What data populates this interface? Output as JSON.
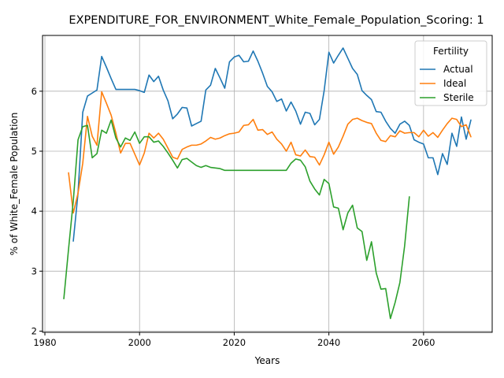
{
  "chart_data": {
    "type": "line",
    "title": "EXPENDITURE_FOR_ENVIRONMENT_White_Female_Population_Scoring: 1",
    "xlabel": "Years",
    "ylabel": "% of White_Female Population",
    "xlim": [
      1979.5,
      2074.5
    ],
    "ylim": [
      1.98,
      6.93
    ],
    "xticks": [
      1980,
      2000,
      2020,
      2040,
      2060
    ],
    "yticks": [
      2,
      3,
      4,
      5,
      6
    ],
    "grid": true,
    "legend": {
      "title": "Fertility",
      "placement": "top-right"
    },
    "series": [
      {
        "name": "Actual",
        "color": "#1f77b4",
        "x": [
          1986,
          1987,
          1988,
          1989,
          1990,
          1991,
          1992,
          1993,
          1994,
          1995,
          1996,
          1997,
          1998,
          1999,
          2000,
          2001,
          2002,
          2003,
          2004,
          2005,
          2006,
          2007,
          2008,
          2009,
          2010,
          2011,
          2012,
          2013,
          2014,
          2015,
          2016,
          2017,
          2018,
          2019,
          2020,
          2021,
          2022,
          2023,
          2024,
          2025,
          2026,
          2027,
          2028,
          2029,
          2030,
          2031,
          2032,
          2033,
          2034,
          2035,
          2036,
          2037,
          2038,
          2039,
          2040,
          2041,
          2042,
          2043,
          2044,
          2045,
          2046,
          2047,
          2048,
          2049,
          2050,
          2051,
          2052,
          2053,
          2054,
          2055,
          2056,
          2057,
          2058,
          2059,
          2060,
          2061,
          2062,
          2063,
          2064,
          2065,
          2066,
          2067,
          2068,
          2069,
          2070
        ],
        "values": [
          3.5,
          4.3,
          5.65,
          5.92,
          5.97,
          6.02,
          6.58,
          6.4,
          6.21,
          6.03,
          6.03,
          6.03,
          6.03,
          6.03,
          6.01,
          5.98,
          6.27,
          6.16,
          6.25,
          6.02,
          5.84,
          5.54,
          5.62,
          5.73,
          5.72,
          5.42,
          5.46,
          5.5,
          6.02,
          6.1,
          6.38,
          6.22,
          6.05,
          6.49,
          6.57,
          6.6,
          6.49,
          6.5,
          6.67,
          6.5,
          6.3,
          6.08,
          5.99,
          5.83,
          5.87,
          5.67,
          5.82,
          5.67,
          5.45,
          5.65,
          5.63,
          5.44,
          5.53,
          6.01,
          6.65,
          6.47,
          6.6,
          6.72,
          6.55,
          6.38,
          6.28,
          6.01,
          5.93,
          5.86,
          5.66,
          5.65,
          5.5,
          5.38,
          5.3,
          5.45,
          5.5,
          5.43,
          5.19,
          5.15,
          5.12,
          4.89,
          4.89,
          4.61,
          4.96,
          4.78,
          5.3,
          5.08,
          5.57,
          5.2,
          5.52
        ]
      },
      {
        "name": "Ideal",
        "color": "#ff7f0e",
        "x": [
          1985,
          1986,
          1987,
          1988,
          1989,
          1990,
          1991,
          1992,
          1993,
          1994,
          1995,
          1996,
          1997,
          1998,
          1999,
          2000,
          2001,
          2002,
          2003,
          2004,
          2005,
          2006,
          2007,
          2008,
          2009,
          2010,
          2011,
          2012,
          2013,
          2014,
          2015,
          2016,
          2017,
          2018,
          2019,
          2020,
          2021,
          2022,
          2023,
          2024,
          2025,
          2026,
          2027,
          2028,
          2029,
          2030,
          2031,
          2032,
          2033,
          2034,
          2035,
          2036,
          2037,
          2038,
          2039,
          2040,
          2041,
          2042,
          2043,
          2044,
          2045,
          2046,
          2047,
          2048,
          2049,
          2050,
          2051,
          2052,
          2053,
          2054,
          2055,
          2056,
          2057,
          2058,
          2059,
          2060,
          2061,
          2062,
          2063,
          2064,
          2065,
          2066,
          2067,
          2068,
          2069,
          2070
        ],
        "values": [
          4.64,
          3.97,
          4.3,
          4.8,
          5.58,
          5.25,
          5.1,
          5.99,
          5.8,
          5.6,
          5.3,
          4.97,
          5.13,
          5.13,
          4.95,
          4.77,
          4.97,
          5.3,
          5.22,
          5.3,
          5.2,
          5.05,
          4.9,
          4.87,
          5.03,
          5.07,
          5.1,
          5.1,
          5.12,
          5.17,
          5.23,
          5.2,
          5.22,
          5.26,
          5.29,
          5.3,
          5.32,
          5.43,
          5.44,
          5.53,
          5.35,
          5.36,
          5.28,
          5.32,
          5.2,
          5.12,
          5.0,
          5.15,
          4.94,
          4.92,
          5.02,
          4.91,
          4.9,
          4.77,
          4.94,
          5.15,
          4.95,
          5.07,
          5.25,
          5.45,
          5.53,
          5.55,
          5.51,
          5.48,
          5.46,
          5.3,
          5.18,
          5.16,
          5.26,
          5.24,
          5.34,
          5.3,
          5.31,
          5.31,
          5.24,
          5.35,
          5.25,
          5.31,
          5.23,
          5.35,
          5.46,
          5.55,
          5.53,
          5.41,
          5.44,
          5.24
        ]
      },
      {
        "name": "Sterile",
        "color": "#2ca02c",
        "x": [
          1984,
          1985,
          1986,
          1987,
          1988,
          1989,
          1990,
          1991,
          1992,
          1993,
          1994,
          1995,
          1996,
          1997,
          1998,
          1999,
          2000,
          2001,
          2002,
          2003,
          2004,
          2005,
          2006,
          2007,
          2008,
          2009,
          2010,
          2011,
          2012,
          2013,
          2014,
          2015,
          2016,
          2017,
          2018,
          2019,
          2020,
          2021,
          2022,
          2023,
          2024,
          2025,
          2026,
          2027,
          2028,
          2029,
          2030,
          2031,
          2032,
          2033,
          2034,
          2035,
          2036,
          2037,
          2038,
          2039,
          2040,
          2041,
          2042,
          2043,
          2044,
          2045,
          2046,
          2047,
          2048,
          2049,
          2050,
          2051,
          2052,
          2053,
          2054,
          2055,
          2056,
          2057
        ],
        "values": [
          2.54,
          3.37,
          4.17,
          5.19,
          5.41,
          5.43,
          4.89,
          4.96,
          5.35,
          5.3,
          5.52,
          5.22,
          5.07,
          5.22,
          5.18,
          5.32,
          5.13,
          5.24,
          5.24,
          5.15,
          5.17,
          5.08,
          4.97,
          4.85,
          4.72,
          4.86,
          4.88,
          4.82,
          4.76,
          4.73,
          4.76,
          4.73,
          4.72,
          4.71,
          4.68,
          4.68,
          4.68,
          4.68,
          4.68,
          4.68,
          4.68,
          4.68,
          4.68,
          4.68,
          4.68,
          4.68,
          4.68,
          4.68,
          4.8,
          4.87,
          4.85,
          4.74,
          4.5,
          4.37,
          4.27,
          4.53,
          4.46,
          4.07,
          4.05,
          3.69,
          3.97,
          4.1,
          3.72,
          3.66,
          3.18,
          3.49,
          2.97,
          2.7,
          2.71,
          2.21,
          2.48,
          2.81,
          3.42,
          4.24
        ]
      }
    ]
  }
}
